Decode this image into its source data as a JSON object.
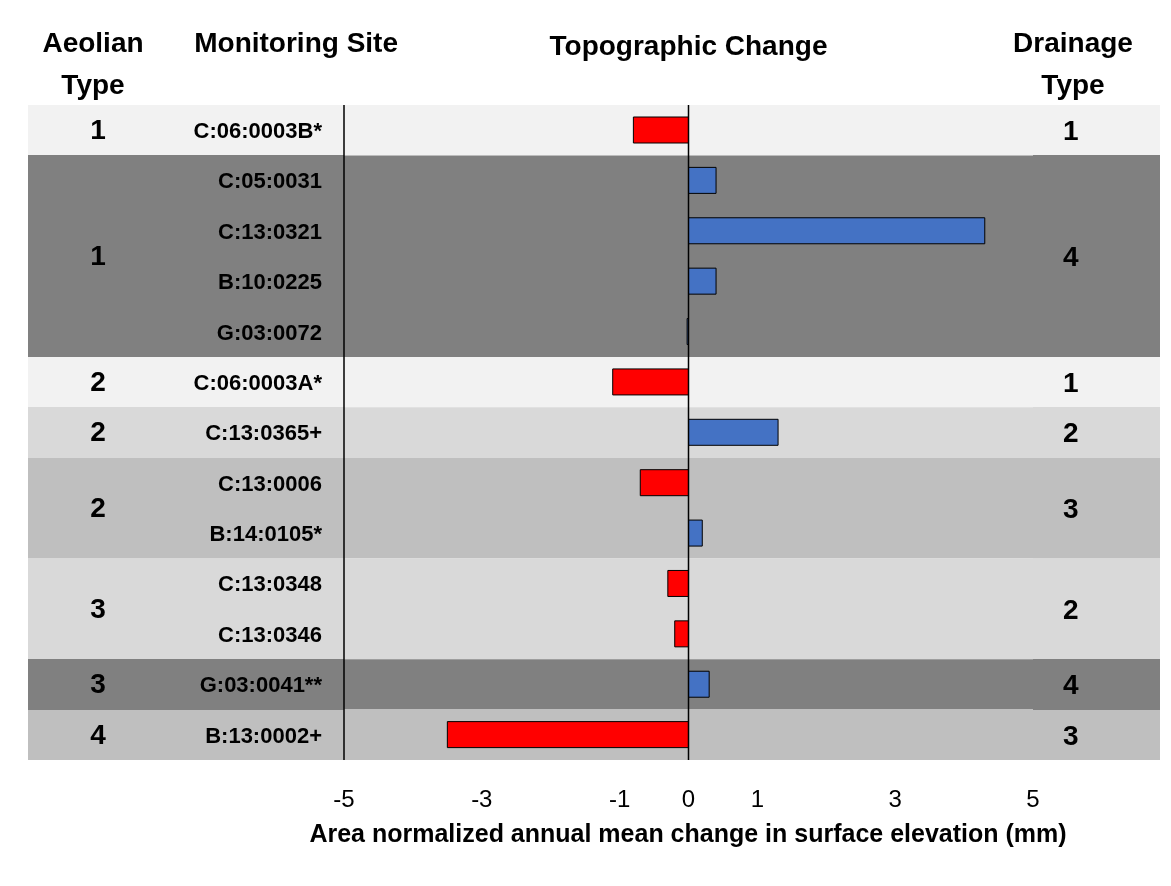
{
  "chart_data": {
    "type": "bar",
    "orientation": "horizontal",
    "title": "Topographic Change",
    "xlabel": "Area normalized annual mean change in surface elevation (mm)",
    "categories": [
      "C:06:0003B*",
      "C:05:0031",
      "C:13:0321",
      "B:10:0225",
      "G:03:0072",
      "C:06:0003A*",
      "C:13:0365+",
      "C:13:0006",
      "B:14:0105*",
      "C:13:0348",
      "C:13:0346",
      "G:03:0041**",
      "B:13:0002+"
    ],
    "values": [
      -0.8,
      0.4,
      4.3,
      0.4,
      -0.02,
      -1.1,
      1.3,
      -0.7,
      0.2,
      -0.3,
      -0.2,
      0.3,
      -3.5
    ],
    "colors": [
      "#ff0000",
      "#4472c4",
      "#4472c4",
      "#4472c4",
      "#4472c4",
      "#ff0000",
      "#4472c4",
      "#ff0000",
      "#4472c4",
      "#ff0000",
      "#ff0000",
      "#4472c4",
      "#ff0000"
    ],
    "xlim": [
      -5,
      5
    ],
    "xticks": [
      -5,
      -3,
      -1,
      0,
      1,
      3,
      5
    ],
    "grid": false,
    "legend": false,
    "ref_lines": [
      {
        "axis": "x",
        "value": 0
      }
    ],
    "bands": [
      {
        "axis": "y",
        "from": "C:06:0003B*",
        "to": "C:06:0003B*",
        "label": "1",
        "color": "#f2f2f2"
      },
      {
        "axis": "y",
        "from": "C:05:0031",
        "to": "G:03:0072",
        "label": "4",
        "color": "#808080"
      },
      {
        "axis": "y",
        "from": "C:06:0003A*",
        "to": "C:06:0003A*",
        "label": "1",
        "color": "#f2f2f2"
      },
      {
        "axis": "y",
        "from": "C:13:0365+",
        "to": "C:13:0365+",
        "label": "2",
        "color": "#d9d9d9"
      },
      {
        "axis": "y",
        "from": "C:13:0006",
        "to": "B:14:0105*",
        "label": "3",
        "color": "#bfbfbf"
      },
      {
        "axis": "y",
        "from": "C:13:0348",
        "to": "C:13:0346",
        "label": "2",
        "color": "#d9d9d9"
      },
      {
        "axis": "y",
        "from": "G:03:0041**",
        "to": "G:03:0041**",
        "label": "4",
        "color": "#808080"
      },
      {
        "axis": "y",
        "from": "B:13:0002+",
        "to": "B:13:0002+",
        "label": "3",
        "color": "#bfbfbf"
      }
    ],
    "annotations": [
      "Aeolian Type",
      "Monitoring Site",
      "Drainage Type",
      "1",
      "1",
      "2",
      "2",
      "2",
      "3",
      "3",
      "4"
    ]
  }
}
